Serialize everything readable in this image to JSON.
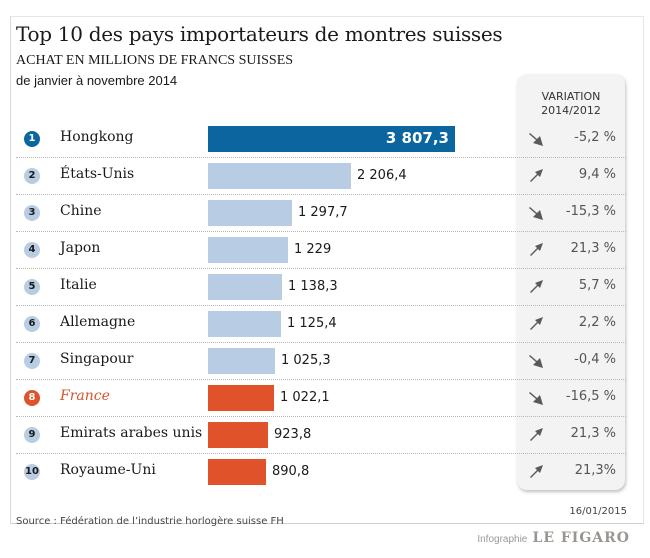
{
  "header": {
    "title": "Top 10 des pays importateurs de montres suisses",
    "subtitle": "ACHAT EN MILLIONS DE FRANCS SUISSES",
    "period": "de janvier à novembre 2014",
    "variation_label_line1": "VARIATION",
    "variation_label_line2": "2014/2012"
  },
  "colors": {
    "top": "#0b66a0",
    "default": "#b8cde4",
    "highlight": "#e0522a"
  },
  "chart_data": {
    "type": "bar",
    "orientation": "horizontal",
    "title": "Top 10 des pays importateurs de montres suisses",
    "xlabel": "ACHAT EN MILLIONS DE FRANCS SUISSES",
    "xlim": [
      0,
      3807.3
    ],
    "rows": [
      {
        "rank": "1",
        "country": "Hongkong",
        "value": 3807.3,
        "label": "3 807,3",
        "variation": "-5,2 %",
        "trend": "down",
        "color": "top"
      },
      {
        "rank": "2",
        "country": "États-Unis",
        "value": 2206.4,
        "label": "2 206,4",
        "variation": "9,4 %",
        "trend": "up",
        "color": "default"
      },
      {
        "rank": "3",
        "country": "Chine",
        "value": 1297.7,
        "label": "1 297,7",
        "variation": "-15,3 %",
        "trend": "down",
        "color": "default"
      },
      {
        "rank": "4",
        "country": "Japon",
        "value": 1229,
        "label": "1 229",
        "variation": "21,3 %",
        "trend": "up",
        "color": "default"
      },
      {
        "rank": "5",
        "country": "Italie",
        "value": 1138.3,
        "label": "1 138,3",
        "variation": "5,7 %",
        "trend": "up",
        "color": "default"
      },
      {
        "rank": "6",
        "country": "Allemagne",
        "value": 1125.4,
        "label": "1 125,4",
        "variation": "2,2 %",
        "trend": "up",
        "color": "default"
      },
      {
        "rank": "7",
        "country": "Singapour",
        "value": 1025.3,
        "label": "1 025,3",
        "variation": "-0,4 %",
        "trend": "down",
        "color": "default"
      },
      {
        "rank": "8",
        "country": "France",
        "value": 1022.1,
        "label": "1 022,1",
        "variation": "-16,5 %",
        "trend": "down",
        "color": "highlight"
      },
      {
        "rank": "9",
        "country": "Emirats arabes unis",
        "value": 923.8,
        "label": "923,8",
        "variation": "21,3 %",
        "trend": "up",
        "color": "highlight"
      },
      {
        "rank": "10",
        "country": "Royaume-Uni",
        "value": 890.8,
        "label": "890,8",
        "variation": "21,3%",
        "trend": "up",
        "color": "highlight"
      }
    ]
  },
  "footer": {
    "date": "16/01/2015",
    "source": "Source : Fédération de l’industrie horlogère suisse FH",
    "credit_label": "Infographie",
    "credit_logo": "LE FIGARO"
  }
}
